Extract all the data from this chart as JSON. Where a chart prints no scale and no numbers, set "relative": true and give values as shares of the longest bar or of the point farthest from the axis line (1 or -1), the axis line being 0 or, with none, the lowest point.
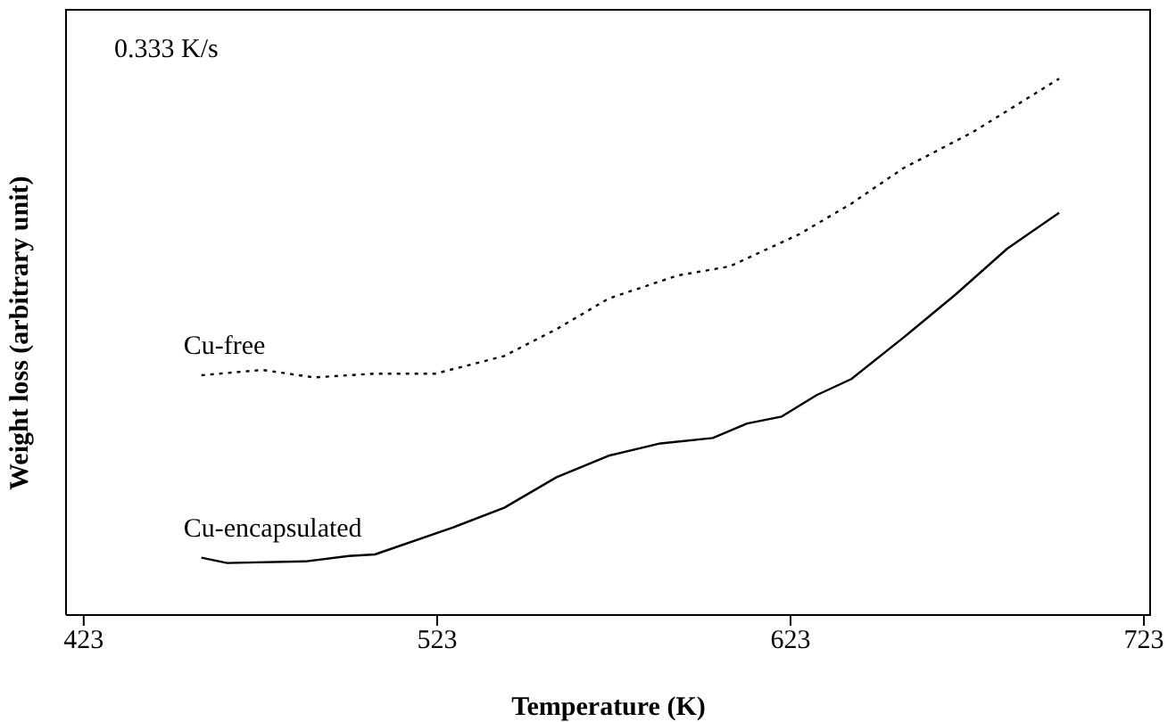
{
  "chart_data": {
    "type": "line",
    "xlabel": "Temperature (K)",
    "ylabel": "Weight loss (arbitrary unit)",
    "annotations": [
      "0.333 K/s"
    ],
    "relative": true,
    "xlim": [
      418,
      725
    ],
    "xticks": [
      423,
      523,
      623,
      723
    ],
    "series": [
      {
        "name": "Cu-free",
        "color": "#000000",
        "line_style": "dotted",
        "x": [
          456.3,
          473.5,
          488.2,
          505.4,
          522.5,
          542,
          556.8,
          571.5,
          591,
          605.8,
          625.5,
          640.2,
          654.9,
          674.5,
          699
        ],
        "values": [
          0.447,
          0.457,
          0.443,
          0.45,
          0.45,
          0.483,
          0.533,
          0.59,
          0.633,
          0.65,
          0.71,
          0.767,
          0.833,
          0.9,
          1
        ]
      },
      {
        "name": "Cu-encapsulated",
        "color": "#000000",
        "line_style": "solid",
        "x": [
          456.3,
          463.6,
          485.7,
          498,
          505.4,
          527.4,
          542,
          556.8,
          571.5,
          586.2,
          601,
          610.7,
          620.5,
          630.4,
          640.2,
          654.9,
          669.6,
          684.3,
          699
        ],
        "values": [
          0.107,
          0.097,
          0.1,
          0.11,
          0.113,
          0.163,
          0.2,
          0.257,
          0.297,
          0.32,
          0.33,
          0.357,
          0.37,
          0.41,
          0.44,
          0.517,
          0.597,
          0.683,
          0.75
        ]
      }
    ]
  }
}
